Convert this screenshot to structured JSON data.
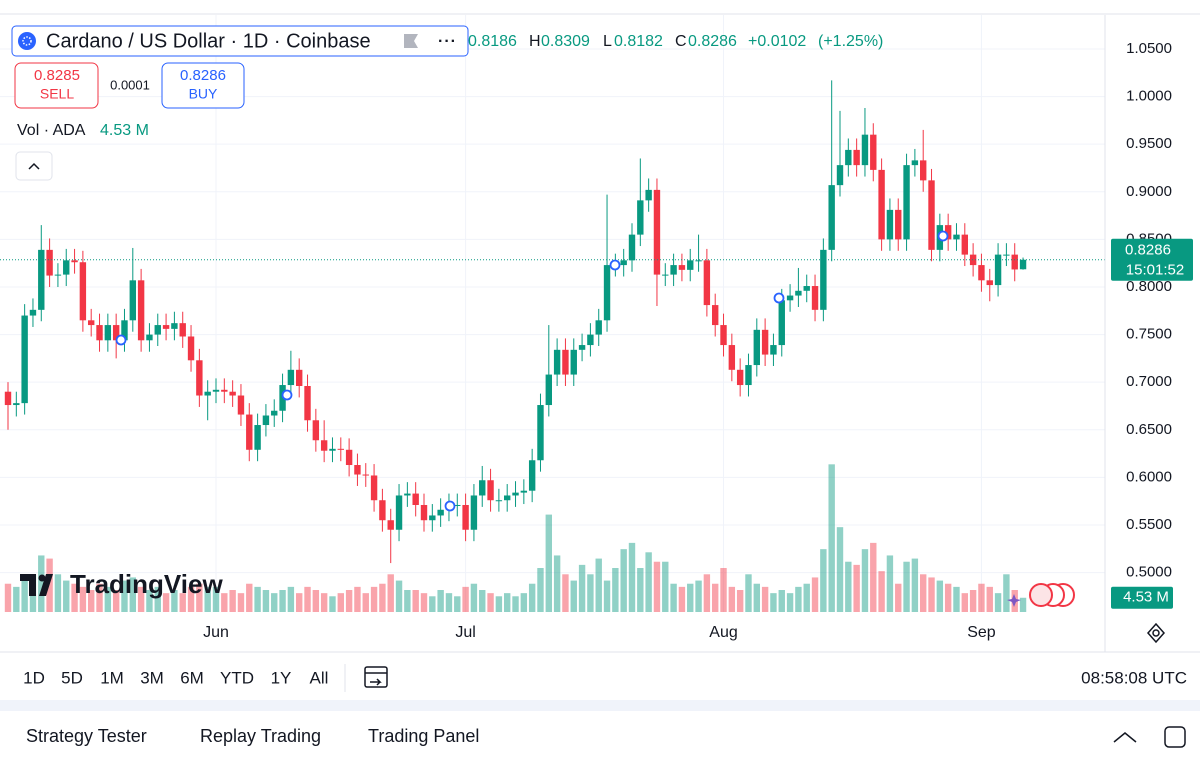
{
  "header": {
    "title": "Cardano / US Dollar · 1D · Coinbase",
    "legend": [
      {
        "value": "0.8186"
      },
      {
        "label": "H",
        "value": "0.8309"
      },
      {
        "label": "L",
        "value": "0.8182"
      },
      {
        "label": "C",
        "value": "0.8286"
      },
      {
        "value": "+0.0102"
      },
      {
        "value": "(+1.25%)"
      }
    ],
    "sell": {
      "price": "0.8285",
      "label": "SELL"
    },
    "spread": "0.0001",
    "buy": {
      "price": "0.8286",
      "label": "BUY"
    },
    "volume_legend": {
      "label": "Vol · ADA",
      "value": "4.53 M"
    }
  },
  "logo": "TradingView",
  "price_tag": {
    "price": "0.8286",
    "countdown": "15:01:52"
  },
  "volume_tag": "4.53 M",
  "chart_data": {
    "type": "candlestick",
    "categories": [
      null,
      null,
      null,
      null,
      null,
      null,
      null,
      null,
      null,
      null,
      null,
      null,
      null,
      null,
      null,
      null,
      null,
      null,
      null,
      null,
      null,
      null,
      null,
      null,
      null,
      "Jun",
      null,
      null,
      null,
      null,
      null,
      null,
      null,
      null,
      null,
      null,
      null,
      null,
      null,
      null,
      null,
      null,
      null,
      null,
      null,
      null,
      null,
      null,
      null,
      null,
      null,
      null,
      null,
      null,
      null,
      "Jul",
      null,
      null,
      null,
      null,
      null,
      null,
      null,
      null,
      null,
      null,
      null,
      null,
      null,
      null,
      null,
      null,
      null,
      null,
      null,
      null,
      null,
      null,
      null,
      null,
      null,
      null,
      null,
      null,
      null,
      null,
      "Aug",
      null,
      null,
      null,
      null,
      null,
      null,
      null,
      null,
      null,
      null,
      null,
      null,
      null,
      null,
      null,
      null,
      null,
      null,
      null,
      null,
      null,
      null,
      null,
      null,
      null,
      null,
      null,
      null,
      null,
      null,
      "Sep",
      null,
      null,
      null,
      null,
      null
    ],
    "open": [
      0.69,
      0.676,
      0.678,
      0.77,
      0.776,
      0.839,
      0.812,
      0.813,
      0.828,
      0.826,
      0.765,
      0.76,
      0.744,
      0.76,
      0.744,
      0.765,
      0.807,
      0.744,
      0.75,
      0.76,
      0.756,
      0.762,
      0.748,
      0.723,
      0.686,
      0.69,
      0.692,
      0.69,
      0.686,
      0.666,
      0.629,
      0.655,
      0.665,
      0.67,
      0.697,
      0.713,
      0.696,
      0.66,
      0.639,
      0.628,
      0.63,
      0.629,
      0.613,
      0.603,
      0.602,
      0.576,
      0.555,
      0.545,
      0.581,
      0.583,
      0.571,
      0.555,
      0.56,
      0.566,
      0.571,
      0.571,
      0.545,
      0.581,
      0.597,
      0.576,
      0.576,
      0.581,
      0.584,
      0.586,
      0.618,
      0.676,
      0.708,
      0.734,
      0.708,
      0.734,
      0.739,
      0.75,
      0.765,
      0.823,
      0.823,
      0.828,
      0.855,
      0.891,
      0.902,
      0.813,
      0.813,
      0.823,
      0.818,
      0.828,
      0.828,
      0.781,
      0.76,
      0.739,
      0.713,
      0.697,
      0.718,
      0.755,
      0.729,
      0.739,
      0.786,
      0.791,
      0.796,
      0.801,
      0.776,
      0.839,
      0.907,
      0.928,
      0.944,
      0.928,
      0.96,
      0.923,
      0.85,
      0.881,
      0.85,
      0.928,
      0.933,
      0.912,
      0.839,
      0.865,
      0.85,
      0.855,
      0.834,
      0.823,
      0.807,
      0.802,
      0.834,
      0.834,
      0.8186
    ],
    "high": [
      0.7,
      0.69,
      0.782,
      0.788,
      0.865,
      0.851,
      0.825,
      0.84,
      0.84,
      0.838,
      0.777,
      0.772,
      0.772,
      0.772,
      0.777,
      0.841,
      0.819,
      0.762,
      0.772,
      0.772,
      0.774,
      0.774,
      0.76,
      0.735,
      0.702,
      0.704,
      0.704,
      0.702,
      0.698,
      0.678,
      0.667,
      0.677,
      0.682,
      0.709,
      0.733,
      0.725,
      0.708,
      0.672,
      0.66,
      0.642,
      0.642,
      0.641,
      0.625,
      0.615,
      0.614,
      0.588,
      0.567,
      0.593,
      0.595,
      0.595,
      0.583,
      0.572,
      0.578,
      0.583,
      0.583,
      0.583,
      0.593,
      0.612,
      0.609,
      0.588,
      0.593,
      0.596,
      0.598,
      0.63,
      0.688,
      0.76,
      0.746,
      0.746,
      0.746,
      0.751,
      0.762,
      0.777,
      0.897,
      0.835,
      0.84,
      0.867,
      0.935,
      0.914,
      0.914,
      0.825,
      0.835,
      0.835,
      0.84,
      0.855,
      0.84,
      0.793,
      0.772,
      0.751,
      0.725,
      0.73,
      0.767,
      0.767,
      0.751,
      0.798,
      0.803,
      0.82,
      0.813,
      0.813,
      0.851,
      1.017,
      0.985,
      0.956,
      0.956,
      0.988,
      0.972,
      0.935,
      0.893,
      0.893,
      0.94,
      0.945,
      0.965,
      0.924,
      0.877,
      0.877,
      0.867,
      0.867,
      0.846,
      0.835,
      0.819,
      0.846,
      0.846,
      0.846,
      0.8309
    ],
    "low": [
      0.65,
      0.664,
      0.666,
      0.758,
      0.764,
      0.8,
      0.8,
      0.801,
      0.814,
      0.753,
      0.748,
      0.732,
      0.732,
      0.725,
      0.732,
      0.753,
      0.732,
      0.732,
      0.738,
      0.744,
      0.744,
      0.736,
      0.711,
      0.674,
      0.66,
      0.678,
      0.678,
      0.674,
      0.654,
      0.617,
      0.617,
      0.643,
      0.653,
      0.658,
      0.685,
      0.684,
      0.648,
      0.627,
      0.616,
      0.616,
      0.617,
      0.601,
      0.591,
      0.59,
      0.564,
      0.543,
      0.51,
      0.533,
      0.569,
      0.559,
      0.543,
      0.543,
      0.548,
      0.554,
      0.559,
      0.533,
      0.533,
      0.569,
      0.564,
      0.564,
      0.564,
      0.569,
      0.572,
      0.574,
      0.606,
      0.664,
      0.696,
      0.696,
      0.696,
      0.722,
      0.727,
      0.738,
      0.753,
      0.811,
      0.811,
      0.816,
      0.843,
      0.879,
      0.78,
      0.801,
      0.801,
      0.806,
      0.806,
      0.816,
      0.769,
      0.748,
      0.727,
      0.701,
      0.685,
      0.685,
      0.706,
      0.717,
      0.717,
      0.727,
      0.774,
      0.779,
      0.784,
      0.764,
      0.764,
      0.827,
      0.895,
      0.916,
      0.916,
      0.916,
      0.911,
      0.838,
      0.838,
      0.838,
      0.838,
      0.916,
      0.9,
      0.827,
      0.827,
      0.838,
      0.838,
      0.822,
      0.811,
      0.795,
      0.785,
      0.79,
      0.822,
      0.806,
      0.8182
    ],
    "close": [
      0.676,
      0.678,
      0.77,
      0.776,
      0.839,
      0.812,
      0.813,
      0.828,
      0.826,
      0.765,
      0.76,
      0.744,
      0.76,
      0.744,
      0.765,
      0.807,
      0.744,
      0.75,
      0.76,
      0.756,
      0.762,
      0.748,
      0.723,
      0.686,
      0.69,
      0.692,
      0.69,
      0.686,
      0.666,
      0.629,
      0.655,
      0.665,
      0.67,
      0.697,
      0.713,
      0.696,
      0.66,
      0.639,
      0.628,
      0.63,
      0.629,
      0.613,
      0.603,
      0.602,
      0.576,
      0.555,
      0.545,
      0.581,
      0.583,
      0.571,
      0.555,
      0.56,
      0.566,
      0.571,
      0.571,
      0.545,
      0.581,
      0.597,
      0.576,
      0.576,
      0.581,
      0.584,
      0.586,
      0.618,
      0.676,
      0.708,
      0.734,
      0.708,
      0.734,
      0.739,
      0.75,
      0.765,
      0.823,
      0.823,
      0.828,
      0.855,
      0.891,
      0.902,
      0.813,
      0.813,
      0.823,
      0.818,
      0.828,
      0.828,
      0.781,
      0.76,
      0.739,
      0.713,
      0.697,
      0.718,
      0.755,
      0.729,
      0.739,
      0.786,
      0.791,
      0.796,
      0.801,
      0.776,
      0.839,
      0.907,
      0.928,
      0.944,
      0.928,
      0.96,
      0.923,
      0.85,
      0.881,
      0.85,
      0.928,
      0.933,
      0.912,
      0.839,
      0.865,
      0.85,
      0.855,
      0.834,
      0.823,
      0.807,
      0.802,
      0.834,
      0.834,
      0.8184,
      0.8286
    ],
    "volume": [
      9,
      8,
      10,
      12,
      18,
      17,
      12,
      10,
      9,
      8,
      7,
      9,
      8,
      7,
      10,
      11,
      8,
      7,
      8,
      6,
      7,
      6,
      8,
      9,
      8,
      8,
      6,
      7,
      6,
      9,
      8,
      7,
      6,
      7,
      8,
      6,
      8,
      7,
      6,
      5,
      6,
      7,
      8,
      6,
      8,
      9,
      12,
      10,
      7,
      7,
      6,
      5,
      7,
      6,
      5,
      8,
      9,
      7,
      6,
      5,
      6,
      5,
      6,
      9,
      14,
      31,
      18,
      12,
      10,
      15,
      12,
      17,
      10,
      14,
      20,
      22,
      14,
      19,
      16,
      16,
      9,
      8,
      9,
      10,
      12,
      9,
      14,
      8,
      7,
      12,
      9,
      8,
      6,
      7,
      6,
      8,
      9,
      11,
      20,
      47,
      27,
      16,
      15,
      20,
      22,
      13,
      18,
      9,
      16,
      17,
      12,
      11,
      10,
      9,
      8,
      6,
      7,
      9,
      8,
      6,
      12,
      7,
      4.53
    ],
    "ylim": [
      0.4586,
      1.0857
    ],
    "yticks": [
      {
        "value": 0.5,
        "label": "0.5000"
      },
      {
        "value": 0.55,
        "label": "0.5500"
      },
      {
        "value": 0.6,
        "label": "0.6000"
      },
      {
        "value": 0.65,
        "label": "0.6500"
      },
      {
        "value": 0.7,
        "label": "0.7000"
      },
      {
        "value": 0.75,
        "label": "0.7500"
      },
      {
        "value": 0.8,
        "label": "0.8000"
      },
      {
        "value": 0.85,
        "label": "0.8500"
      },
      {
        "value": 0.9,
        "label": "0.9000"
      },
      {
        "value": 0.95,
        "label": "0.9500"
      },
      {
        "value": 1.0,
        "label": "1.0000"
      },
      {
        "value": 1.05,
        "label": "1.0500"
      }
    ],
    "volume_ylim": [
      0,
      190
    ],
    "grid": true,
    "up_color": "#089981",
    "down_color": "#f23645"
  },
  "timeframes": [
    "1D",
    "5D",
    "1M",
    "3M",
    "6M",
    "YTD",
    "1Y",
    "All"
  ],
  "clock": "08:58:08 UTC",
  "bottom_tabs": [
    "Strategy Tester",
    "Replay Trading",
    "Trading Panel"
  ]
}
